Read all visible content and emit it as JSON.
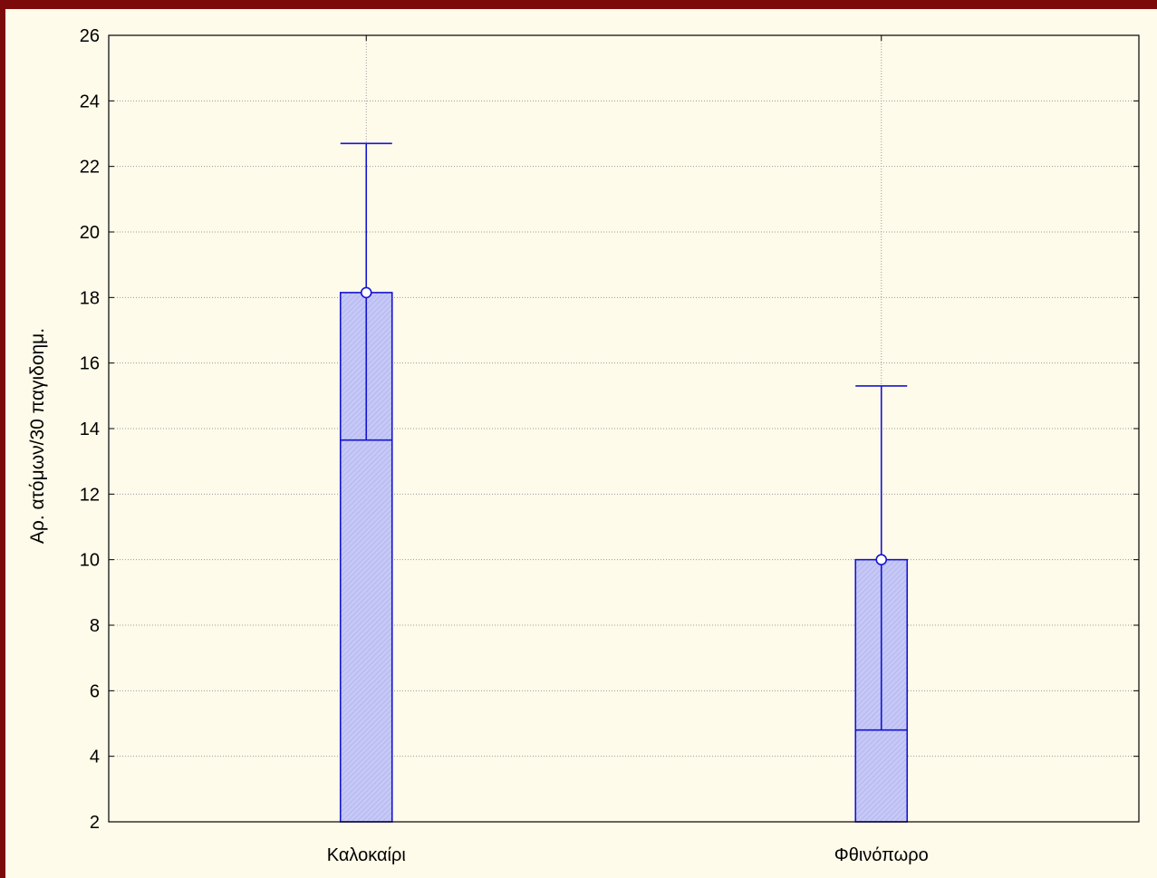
{
  "chart_data": {
    "type": "box",
    "ylabel": "Αρ. ατόμων/30 παγιδοημ.",
    "xlabel": "",
    "ylim": [
      2,
      26
    ],
    "yticks": [
      2,
      4,
      6,
      8,
      10,
      12,
      14,
      16,
      18,
      20,
      22,
      24,
      26
    ],
    "grid": true,
    "categories": [
      "Καλοκαίρι",
      "Φθινόπωρο"
    ],
    "boxes": [
      {
        "category": "Καλοκαίρι",
        "median": 13.65,
        "box_low": 2.0,
        "box_high": 18.15,
        "whisker_high": 22.7,
        "marker": 18.15
      },
      {
        "category": "Φθινόπωρο",
        "median": 4.8,
        "box_low": 2.0,
        "box_high": 10.0,
        "whisker_high": 15.3,
        "marker": 10.0
      }
    ],
    "colors": {
      "box_stroke": "#1414d2",
      "box_fill": "#c6c8f6",
      "hatch": "#aeb1ef",
      "grid": "#9a9a9a",
      "outer_border": "#7d0a0a",
      "background": "#fffbea"
    }
  }
}
